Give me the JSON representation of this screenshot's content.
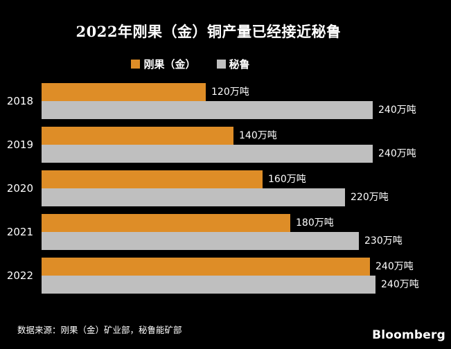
{
  "page": {
    "background_color": "#000000",
    "text_color": "#ffffff"
  },
  "chart_data": {
    "type": "bar",
    "orientation": "horizontal",
    "title": "2022年刚果（金）铜产量已经接近秘鲁",
    "unit": "万吨",
    "categories": [
      "2018",
      "2019",
      "2020",
      "2021",
      "2022"
    ],
    "series": [
      {
        "name": "刚果（金）",
        "color": "#DE8D27",
        "values": [
          120,
          140,
          160,
          180,
          240
        ],
        "labels": [
          "120万吨",
          "140万吨",
          "160万吨",
          "180万吨",
          "240万吨"
        ],
        "bar_length_units": [
          119,
          139,
          160,
          180,
          238
        ]
      },
      {
        "name": "秘鲁",
        "color": "#BFBFBF",
        "values": [
          240,
          240,
          220,
          230,
          240
        ],
        "labels": [
          "240万吨",
          "240万吨",
          "220万吨",
          "230万吨",
          "240万吨"
        ],
        "bar_length_units": [
          240,
          240,
          220,
          230,
          242
        ]
      }
    ],
    "xlim": [
      0,
      240
    ],
    "grid": false,
    "legend_position": "top-center",
    "value_labels": "outside-right"
  },
  "footer": {
    "source": "数据来源：刚果（金）矿业部，秘鲁能矿部",
    "brand": "Bloomberg"
  }
}
